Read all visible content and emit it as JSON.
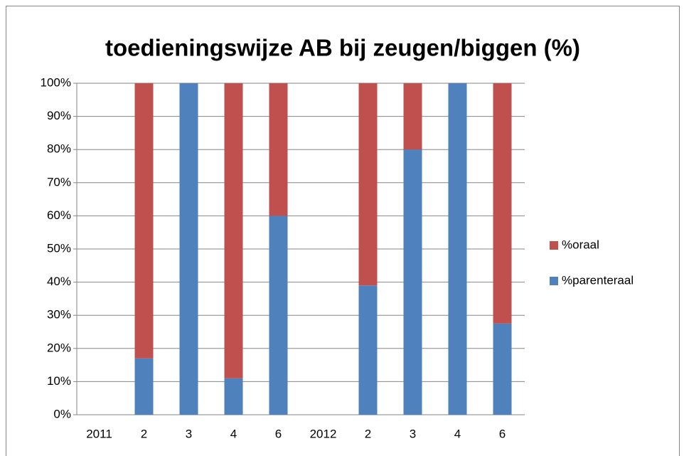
{
  "chart_data": {
    "type": "stacked_bar",
    "title": "toedieningswijze AB bij zeugen/biggen (%)",
    "categories": [
      "2011",
      "2",
      "3",
      "4",
      "6",
      "2012",
      "2",
      "3",
      "4",
      "6"
    ],
    "series": [
      {
        "name": "%parenteraal",
        "color": "#4f81bd",
        "values": [
          null,
          17,
          100,
          11,
          60,
          null,
          39,
          80,
          100,
          27.5
        ]
      },
      {
        "name": "%oraal",
        "color": "#c0504d",
        "values": [
          null,
          83,
          0,
          89,
          40,
          null,
          61,
          20,
          0,
          72.5
        ]
      }
    ],
    "ylim": [
      0,
      100
    ],
    "yticks": [
      {
        "value": 0,
        "label": "0%"
      },
      {
        "value": 10,
        "label": "10%"
      },
      {
        "value": 20,
        "label": "20%"
      },
      {
        "value": 30,
        "label": "30%"
      },
      {
        "value": 40,
        "label": "40%"
      },
      {
        "value": 50,
        "label": "50%"
      },
      {
        "value": 60,
        "label": "60%"
      },
      {
        "value": 70,
        "label": "70%"
      },
      {
        "value": 80,
        "label": "80%"
      },
      {
        "value": 90,
        "label": "90%"
      },
      {
        "value": 100,
        "label": "100%"
      }
    ],
    "grid": true,
    "legend": "right"
  }
}
